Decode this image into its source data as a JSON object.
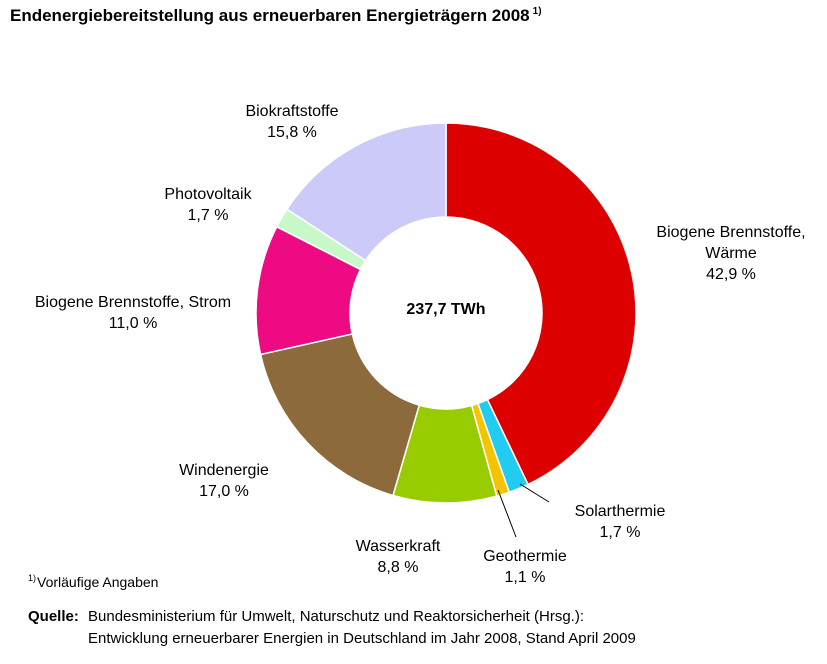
{
  "title": {
    "text": "Endenergiebereitstellung aus erneuerbaren Energieträgern 2008",
    "footnote_marker": "1)"
  },
  "center_label": "237,7 TWh",
  "slice_labels": {
    "biogene_waerme": {
      "line1": "Biogene Brennstoffe,",
      "line2": "Wärme",
      "value": "42,9 %"
    },
    "solarthermie": {
      "line1": "Solarthermie",
      "value": "1,7 %"
    },
    "geothermie": {
      "line1": "Geothermie",
      "value": "1,1 %"
    },
    "wasserkraft": {
      "line1": "Wasserkraft",
      "value": "8,8 %"
    },
    "windenergie": {
      "line1": "Windenergie",
      "value": "17,0 %"
    },
    "biogene_strom": {
      "line1": "Biogene Brennstoffe, Strom",
      "value": "11,0 %"
    },
    "photovoltaik": {
      "line1": "Photovoltaik",
      "value": "1,7 %"
    },
    "biokraftstoffe": {
      "line1": "Biokraftstoffe",
      "value": "15,8 %"
    }
  },
  "footnote": {
    "marker": "1)",
    "text": "Vorläufige Angaben"
  },
  "source": {
    "key": "Quelle:",
    "line1": "Bundesministerium für Umwelt, Naturschutz und Reaktorsicherheit (Hrsg.):",
    "line2": "Entwicklung erneuerbarer Energien in Deutschland im Jahr 2008, Stand April 2009"
  },
  "chart_data": {
    "type": "pie",
    "style": "donut",
    "title": "Endenergiebereitstellung aus erneuerbaren Energieträgern 2008",
    "total": "237,7 TWh",
    "unit": "%",
    "start": "12 o'clock, clockwise",
    "legend": "none (labels beside slices)",
    "slices": [
      {
        "name": "Biogene Brennstoffe, Wärme",
        "value": 42.9,
        "color": "#dd0000"
      },
      {
        "name": "Solarthermie",
        "value": 1.7,
        "color": "#22ccf0"
      },
      {
        "name": "Geothermie",
        "value": 1.1,
        "color": "#f5c400"
      },
      {
        "name": "Wasserkraft",
        "value": 8.8,
        "color": "#99cc00"
      },
      {
        "name": "Windenergie",
        "value": 17.0,
        "color": "#8c6a3c"
      },
      {
        "name": "Biogene Brennstoffe, Strom",
        "value": 11.0,
        "color": "#ee0a82"
      },
      {
        "name": "Photovoltaik",
        "value": 1.7,
        "color": "#c8f8c8"
      },
      {
        "name": "Biokraftstoffe",
        "value": 15.8,
        "color": "#cccaf8"
      }
    ]
  }
}
